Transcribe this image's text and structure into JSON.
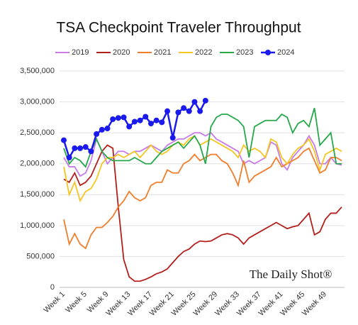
{
  "chart_data": {
    "type": "line",
    "title": "TSA Checkpoint Traveler Throughput",
    "watermark": "The Daily Shot®",
    "categories": [
      "Week 1",
      null,
      null,
      null,
      "Week 5",
      null,
      null,
      null,
      "Week 9",
      null,
      null,
      null,
      "Week 13",
      null,
      null,
      null,
      "Week 17",
      null,
      null,
      null,
      "Week 21",
      null,
      null,
      null,
      "Week 25",
      null,
      null,
      null,
      "Week 29",
      null,
      null,
      null,
      "Week 33",
      null,
      null,
      null,
      "Week 37",
      null,
      null,
      null,
      "Week 41",
      null,
      null,
      null,
      "Week 45",
      null,
      null,
      null,
      "Week 49",
      null,
      null,
      null
    ],
    "ylim": [
      0,
      3500000
    ],
    "yticks": [
      0,
      {
        "value": 500000,
        "label": "500,000"
      },
      {
        "value": 1000000,
        "label": "1,000,000"
      },
      {
        "value": 1500000,
        "label": "1,500,000"
      },
      {
        "value": 2000000,
        "label": "2,000,000"
      },
      {
        "value": 2500000,
        "label": "2,500,000"
      },
      {
        "value": 3000000,
        "label": "3,000,000"
      },
      {
        "value": 3500000,
        "label": "3,500,000"
      }
    ],
    "grid": true,
    "legend": "top",
    "series": [
      {
        "name": "2019",
        "color": "#c77ae8",
        "values": [
          2100000,
          1950000,
          1950000,
          1800000,
          1850000,
          2050000,
          2400000,
          2200000,
          2000000,
          2100000,
          2200000,
          2200000,
          2150000,
          2200000,
          2200000,
          2250000,
          2300000,
          2250000,
          2200000,
          2300000,
          2350000,
          2400000,
          2400000,
          2450000,
          2500000,
          2500000,
          2450000,
          2500000,
          2400000,
          2350000,
          2300000,
          2250000,
          2200000,
          2000000,
          2050000,
          2000000,
          2050000,
          2100000,
          2350000,
          2300000,
          2000000,
          1900000,
          2100000,
          2200000,
          2300000,
          2450000,
          2300000,
          2000000,
          2000000,
          2100000,
          2000000,
          1980000
        ]
      },
      {
        "name": "2020",
        "color": "#b3201c",
        "values": [
          1750000,
          1700000,
          1850000,
          1650000,
          1700000,
          1800000,
          2000000,
          2200000,
          2300000,
          2250000,
          1300000,
          450000,
          170000,
          100000,
          100000,
          130000,
          170000,
          220000,
          250000,
          300000,
          400000,
          500000,
          580000,
          620000,
          700000,
          750000,
          740000,
          750000,
          800000,
          850000,
          870000,
          850000,
          800000,
          700000,
          800000,
          850000,
          900000,
          950000,
          1000000,
          1050000,
          1000000,
          950000,
          980000,
          1000000,
          1100000,
          1200000,
          850000,
          900000,
          1100000,
          1200000,
          1200000,
          1300000
        ]
      },
      {
        "name": "2021",
        "color": "#f07e2b",
        "values": [
          1100000,
          700000,
          870000,
          700000,
          630000,
          850000,
          970000,
          970000,
          1050000,
          1150000,
          1300000,
          1400000,
          1550000,
          1450000,
          1400000,
          1450000,
          1650000,
          1700000,
          1700000,
          1900000,
          1850000,
          1850000,
          2000000,
          2050000,
          2150000,
          2050000,
          2100000,
          2150000,
          2150000,
          2050000,
          2000000,
          1850000,
          1650000,
          2050000,
          1700000,
          1800000,
          1850000,
          1900000,
          1950000,
          2100000,
          1950000,
          2000000,
          2050000,
          2100000,
          2200000,
          2250000,
          2050000,
          1850000,
          1900000,
          2100000,
          2100000,
          2050000
        ]
      },
      {
        "name": "2022",
        "color": "#f3c623",
        "values": [
          1950000,
          1500000,
          1700000,
          1400000,
          1550000,
          1600000,
          1750000,
          2000000,
          2100000,
          2100000,
          2150000,
          2100000,
          2150000,
          2200000,
          2100000,
          2200000,
          2300000,
          2200000,
          2150000,
          2200000,
          2300000,
          2350000,
          2300000,
          2400000,
          2450000,
          2300000,
          2350000,
          2400000,
          2350000,
          2300000,
          2250000,
          2200000,
          2100000,
          2300000,
          2200000,
          2250000,
          2200000,
          2100000,
          2400000,
          2350000,
          2100000,
          2000000,
          2150000,
          2250000,
          2300000,
          2400000,
          2200000,
          1900000,
          2150000,
          2200000,
          2250000,
          2200000
        ]
      },
      {
        "name": "2023",
        "color": "#25a74a",
        "values": [
          2250000,
          2000000,
          2100000,
          2050000,
          1950000,
          2200000,
          2400000,
          2200000,
          2100000,
          2050000,
          2050000,
          2050000,
          2050000,
          2100000,
          2050000,
          2000000,
          2000000,
          2100000,
          2200000,
          2250000,
          2300000,
          2350000,
          2250000,
          2350000,
          2450000,
          2300000,
          2000000,
          2600000,
          2750000,
          2800000,
          2800000,
          2750000,
          2700000,
          2600000,
          2100000,
          2600000,
          2650000,
          2700000,
          2700000,
          2700000,
          2800000,
          2750000,
          2500000,
          2650000,
          2700000,
          2600000,
          2900000,
          2300000,
          2400000,
          2500000,
          2000000,
          2000000
        ]
      },
      {
        "name": "2024",
        "color": "#1a1aee",
        "marker": true,
        "values": [
          2380000,
          2100000,
          2250000,
          2250000,
          2270000,
          2200000,
          2480000,
          2550000,
          2570000,
          2720000,
          2740000,
          2750000,
          2600000,
          2680000,
          2700000,
          2760000,
          2650000,
          2700000,
          2670000,
          2850000,
          2420000,
          2830000,
          2900000,
          2850000,
          3000000,
          2850000,
          3020000,
          null,
          null,
          null,
          null,
          null,
          null,
          null,
          null,
          null,
          null,
          null,
          null,
          null,
          null,
          null,
          null,
          null,
          null,
          null,
          null,
          null,
          null,
          null,
          null,
          null
        ]
      }
    ]
  }
}
